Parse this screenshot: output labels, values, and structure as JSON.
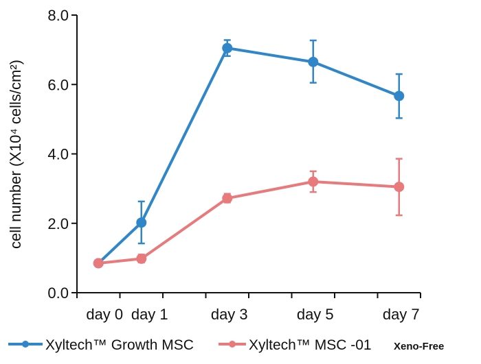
{
  "chart_data": {
    "type": "line",
    "title": "",
    "xlabel": "",
    "ylabel": "cell number (X10⁴ cells/cm²)",
    "x": [
      0,
      1,
      3,
      5,
      7
    ],
    "x_tick_labels": [
      "day 0",
      "day 1",
      "day 3",
      "day 5",
      "day 7"
    ],
    "xlim": [
      -0.5,
      7.5
    ],
    "ylim": [
      0,
      8
    ],
    "y_ticks": [
      0,
      2,
      4,
      6,
      8
    ],
    "y_tick_labels": [
      "0.0",
      "2.0",
      "4.0",
      "6.0",
      "8.0"
    ],
    "grid": false,
    "legend_position": "bottom",
    "series": [
      {
        "name": "Xyltech™ Growth MSC",
        "color": "#2f86c8",
        "values": [
          0.85,
          2.02,
          7.05,
          6.65,
          5.67
        ],
        "error_low": [
          0.85,
          1.42,
          6.82,
          6.05,
          5.03
        ],
        "error_high": [
          0.85,
          2.63,
          7.28,
          7.27,
          6.3
        ]
      },
      {
        "name": "Xyltech™ MSC -01",
        "name_suffix": "Xeno-Free",
        "color": "#e87a7c",
        "values": [
          0.85,
          0.98,
          2.72,
          3.2,
          3.05
        ],
        "error_low": [
          0.85,
          0.87,
          2.6,
          2.9,
          2.23
        ],
        "error_high": [
          0.85,
          1.1,
          2.85,
          3.5,
          3.86
        ]
      }
    ]
  }
}
